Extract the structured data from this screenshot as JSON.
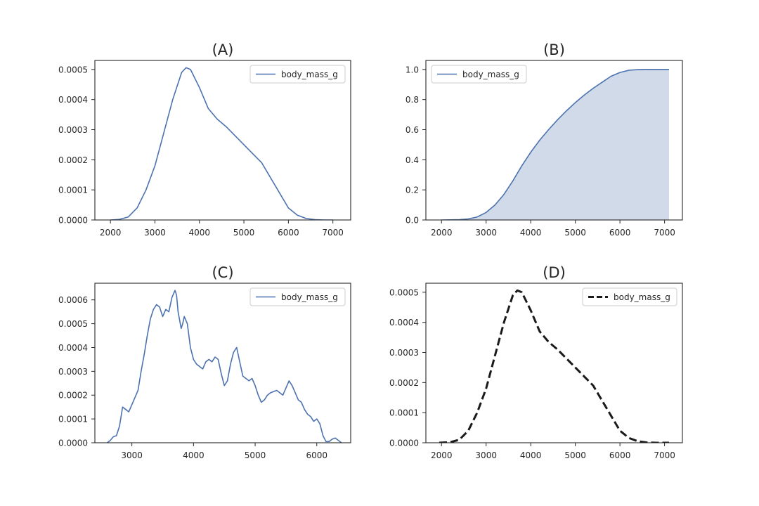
{
  "figure": {
    "panels": [
      "A",
      "B",
      "C",
      "D"
    ]
  },
  "chart_data": [
    {
      "id": "A",
      "type": "line",
      "title": "(A)",
      "xlabel": "",
      "ylabel": "",
      "xlim": [
        1650,
        7400
      ],
      "ylim": [
        0,
        0.00053
      ],
      "xticks": [
        2000,
        3000,
        4000,
        5000,
        6000,
        7000
      ],
      "xtick_labels": [
        "2000",
        "3000",
        "4000",
        "5000",
        "6000",
        "7000"
      ],
      "yticks": [
        0,
        0.0001,
        0.0002,
        0.0003,
        0.0004,
        0.0005
      ],
      "ytick_labels": [
        "0.0000",
        "0.0001",
        "0.0002",
        "0.0003",
        "0.0004",
        "0.0005"
      ],
      "legend": {
        "label": "body_mass_g",
        "position": "top-right",
        "style": "solid"
      },
      "series": [
        {
          "name": "body_mass_g",
          "color": "#4c72b0",
          "style": "solid",
          "fill": false,
          "x": [
            2000,
            2200,
            2400,
            2600,
            2800,
            3000,
            3200,
            3400,
            3600,
            3700,
            3800,
            4000,
            4200,
            4400,
            4600,
            4800,
            5000,
            5200,
            5400,
            5600,
            5800,
            6000,
            6200,
            6400,
            6600,
            6800,
            7000
          ],
          "y": [
            0.0,
            2e-06,
            1e-05,
            4e-05,
            0.0001,
            0.00018,
            0.00029,
            0.0004,
            0.00049,
            0.000506,
            0.0005,
            0.00044,
            0.00037,
            0.000335,
            0.00031,
            0.00028,
            0.00025,
            0.00022,
            0.00019,
            0.00014,
            9e-05,
            4e-05,
            1.6e-05,
            5e-06,
            1e-06,
            0.0,
            0.0
          ]
        }
      ]
    },
    {
      "id": "B",
      "type": "area",
      "title": "(B)",
      "xlabel": "",
      "ylabel": "",
      "xlim": [
        1650,
        7400
      ],
      "ylim": [
        0,
        1.06
      ],
      "xticks": [
        2000,
        3000,
        4000,
        5000,
        6000,
        7000
      ],
      "xtick_labels": [
        "2000",
        "3000",
        "4000",
        "5000",
        "6000",
        "7000"
      ],
      "yticks": [
        0,
        0.2,
        0.4,
        0.6,
        0.8,
        1.0
      ],
      "ytick_labels": [
        "0.0",
        "0.2",
        "0.4",
        "0.6",
        "0.8",
        "1.0"
      ],
      "legend": {
        "label": "body_mass_g",
        "position": "top-left",
        "style": "solid"
      },
      "series": [
        {
          "name": "body_mass_g",
          "color": "#4c72b0",
          "fill_color": "#d0dae8",
          "style": "solid",
          "fill": true,
          "x": [
            2000,
            2400,
            2600,
            2800,
            3000,
            3200,
            3400,
            3600,
            3800,
            4000,
            4200,
            4400,
            4600,
            4800,
            5000,
            5200,
            5400,
            5600,
            5800,
            6000,
            6200,
            6400,
            6600,
            6800,
            7100
          ],
          "y": [
            0.0,
            0.002,
            0.007,
            0.02,
            0.05,
            0.1,
            0.17,
            0.26,
            0.36,
            0.45,
            0.53,
            0.6,
            0.665,
            0.725,
            0.78,
            0.83,
            0.875,
            0.915,
            0.955,
            0.98,
            0.995,
            0.999,
            1.0,
            1.0,
            1.0
          ]
        }
      ]
    },
    {
      "id": "C",
      "type": "line",
      "title": "(C)",
      "xlabel": "",
      "ylabel": "",
      "xlim": [
        2400,
        6550
      ],
      "ylim": [
        0,
        0.00067
      ],
      "xticks": [
        3000,
        4000,
        5000,
        6000
      ],
      "xtick_labels": [
        "3000",
        "4000",
        "5000",
        "6000"
      ],
      "yticks": [
        0,
        0.0001,
        0.0002,
        0.0003,
        0.0004,
        0.0005,
        0.0006
      ],
      "ytick_labels": [
        "0.0000",
        "0.0001",
        "0.0002",
        "0.0003",
        "0.0004",
        "0.0005",
        "0.0006"
      ],
      "legend": {
        "label": "body_mass_g",
        "position": "top-right",
        "style": "solid"
      },
      "series": [
        {
          "name": "body_mass_g",
          "color": "#4c72b0",
          "style": "solid",
          "fill": false,
          "x": [
            2600,
            2650,
            2700,
            2750,
            2800,
            2850,
            2900,
            2950,
            3000,
            3050,
            3100,
            3150,
            3200,
            3250,
            3300,
            3350,
            3400,
            3450,
            3500,
            3550,
            3600,
            3650,
            3700,
            3725,
            3750,
            3800,
            3825,
            3850,
            3900,
            3950,
            4000,
            4050,
            4100,
            4150,
            4200,
            4250,
            4300,
            4350,
            4400,
            4450,
            4500,
            4550,
            4600,
            4650,
            4700,
            4750,
            4800,
            4850,
            4900,
            4950,
            5000,
            5050,
            5100,
            5150,
            5200,
            5250,
            5300,
            5350,
            5400,
            5450,
            5500,
            5550,
            5600,
            5650,
            5700,
            5750,
            5800,
            5850,
            5900,
            5950,
            6000,
            6050,
            6100,
            6150,
            6200,
            6250,
            6300,
            6350,
            6400
          ],
          "y": [
            0.0,
            1e-05,
            2.5e-05,
            3e-05,
            7e-05,
            0.00015,
            0.00014,
            0.00013,
            0.00016,
            0.00019,
            0.00022,
            0.0003,
            0.00037,
            0.00045,
            0.00052,
            0.00056,
            0.00058,
            0.00057,
            0.00053,
            0.00056,
            0.00055,
            0.00061,
            0.00064,
            0.00062,
            0.00055,
            0.00048,
            0.0005,
            0.00053,
            0.0005,
            0.0004,
            0.00035,
            0.00033,
            0.00032,
            0.00031,
            0.00034,
            0.00035,
            0.00034,
            0.00036,
            0.00035,
            0.00029,
            0.00024,
            0.00026,
            0.00033,
            0.00038,
            0.0004,
            0.00034,
            0.00028,
            0.00027,
            0.00026,
            0.00027,
            0.00024,
            0.0002,
            0.00017,
            0.00018,
            0.0002,
            0.00021,
            0.000215,
            0.00022,
            0.00021,
            0.0002,
            0.00023,
            0.00026,
            0.00024,
            0.00021,
            0.00018,
            0.00017,
            0.00014,
            0.00012,
            0.00011,
            9e-05,
            0.0001,
            8e-05,
            3e-05,
            5e-06,
            5e-06,
            1.5e-05,
            2e-05,
            1e-05,
            0.0
          ]
        }
      ]
    },
    {
      "id": "D",
      "type": "line",
      "title": "(D)",
      "xlabel": "",
      "ylabel": "",
      "xlim": [
        1650,
        7400
      ],
      "ylim": [
        0,
        0.00053
      ],
      "xticks": [
        2000,
        3000,
        4000,
        5000,
        6000,
        7000
      ],
      "xtick_labels": [
        "2000",
        "3000",
        "4000",
        "5000",
        "6000",
        "7000"
      ],
      "yticks": [
        0,
        0.0001,
        0.0002,
        0.0003,
        0.0004,
        0.0005
      ],
      "ytick_labels": [
        "0.0000",
        "0.0001",
        "0.0002",
        "0.0003",
        "0.0004",
        "0.0005"
      ],
      "legend": {
        "label": "body_mass_g",
        "position": "top-right",
        "style": "dashed"
      },
      "series": [
        {
          "name": "body_mass_g",
          "color": "#1a1a1a",
          "style": "dashed",
          "fill": false,
          "x": [
            1950,
            2200,
            2400,
            2600,
            2800,
            3000,
            3200,
            3400,
            3600,
            3700,
            3800,
            4000,
            4200,
            4400,
            4600,
            4800,
            5000,
            5200,
            5400,
            5600,
            5800,
            6000,
            6200,
            6400,
            6600,
            6800,
            7100
          ],
          "y": [
            0.0,
            2e-06,
            1e-05,
            4e-05,
            0.0001,
            0.00018,
            0.00029,
            0.0004,
            0.00049,
            0.000506,
            0.0005,
            0.00044,
            0.00037,
            0.000335,
            0.00031,
            0.00028,
            0.00025,
            0.00022,
            0.00019,
            0.00014,
            9e-05,
            4e-05,
            1.6e-05,
            5e-06,
            1e-06,
            0.0,
            0.0
          ]
        }
      ]
    }
  ]
}
